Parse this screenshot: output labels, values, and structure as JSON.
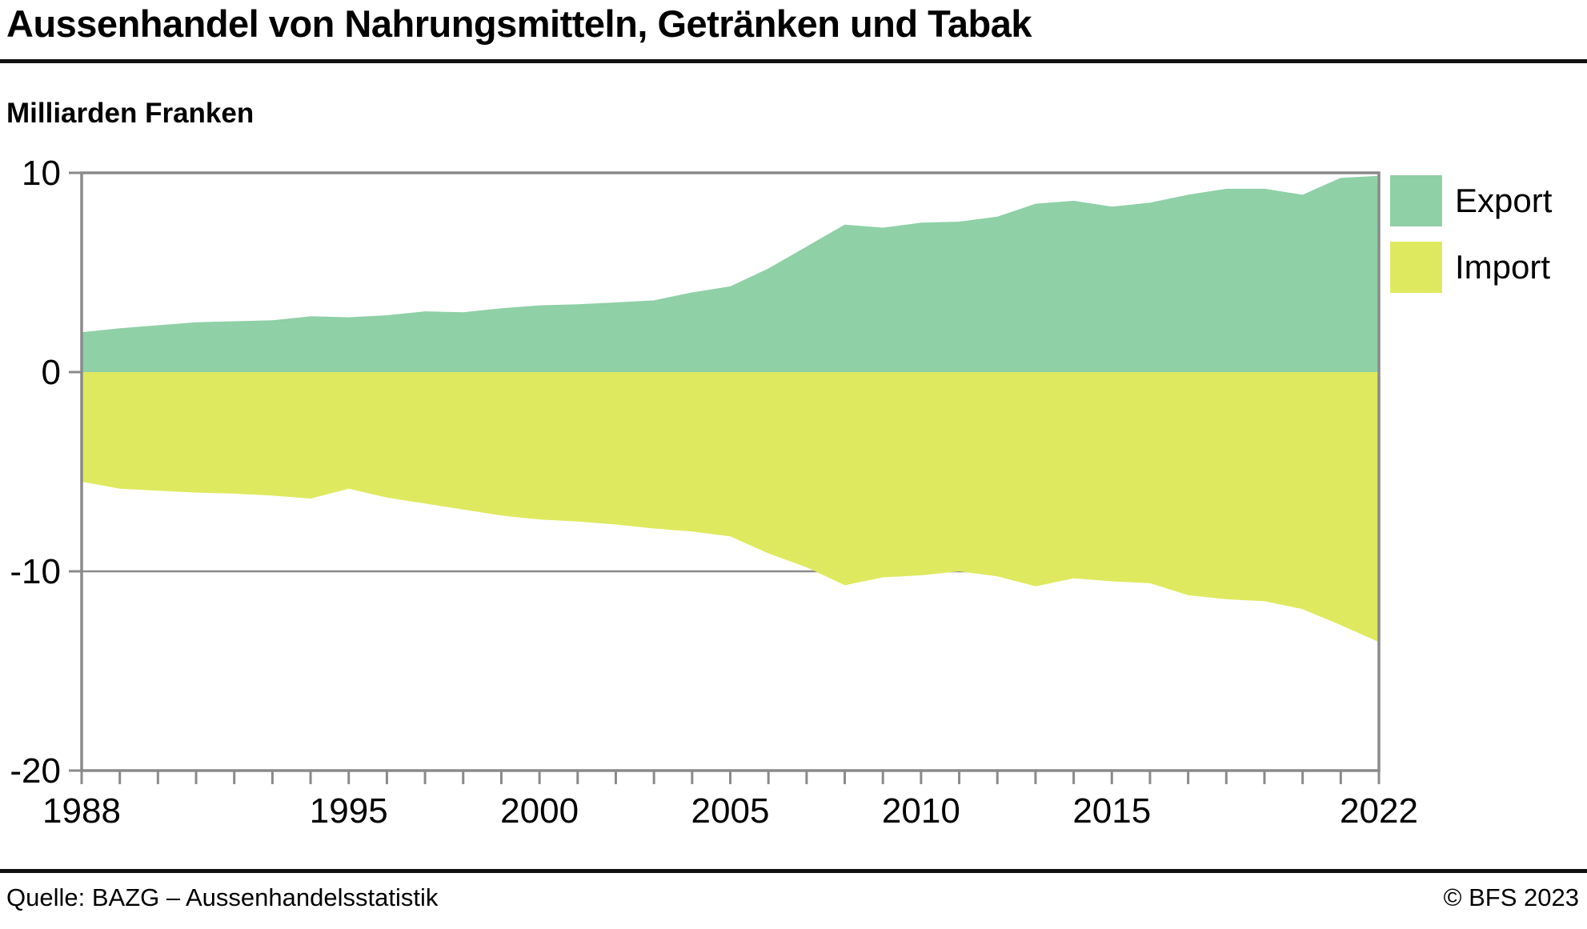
{
  "title": "Aussenhandel von Nahrungsmitteln, Getränken und Tabak",
  "subtitle": "Milliarden Franken",
  "legend": {
    "items": [
      {
        "label": "Export",
        "color": "#8fd0a7"
      },
      {
        "label": "Import",
        "color": "#dfe95f"
      }
    ]
  },
  "footer": {
    "source": "Quelle: BAZG – Aussenhandelsstatistik",
    "copyright": "© BFS 2023"
  },
  "chart_data": {
    "type": "area",
    "title": "Aussenhandel von Nahrungsmitteln, Getränken und Tabak",
    "ylabel": "Milliarden Franken",
    "xlabel": "",
    "ylim": [
      -20,
      10
    ],
    "yticks": [
      10,
      0,
      -10,
      -20
    ],
    "gridlines": [
      -10
    ],
    "grid": "horizontal-partial",
    "legend_position": "top-right",
    "axis_color": "#8a8a8a",
    "x": [
      1988,
      1989,
      1990,
      1991,
      1992,
      1993,
      1994,
      1995,
      1996,
      1997,
      1998,
      1999,
      2000,
      2001,
      2002,
      2003,
      2004,
      2005,
      2006,
      2007,
      2008,
      2009,
      2010,
      2011,
      2012,
      2013,
      2014,
      2015,
      2016,
      2017,
      2018,
      2019,
      2020,
      2021,
      2022
    ],
    "xticks_labeled": [
      1988,
      1995,
      2000,
      2005,
      2010,
      2015,
      2022
    ],
    "series": [
      {
        "name": "Export",
        "color": "#8fd0a7",
        "values": [
          2.0,
          2.2,
          2.35,
          2.5,
          2.55,
          2.6,
          2.8,
          2.75,
          2.85,
          3.05,
          3.0,
          3.2,
          3.35,
          3.4,
          3.5,
          3.6,
          4.0,
          4.3,
          5.2,
          6.3,
          7.4,
          7.25,
          7.5,
          7.55,
          7.8,
          8.45,
          8.6,
          8.3,
          8.5,
          8.9,
          9.2,
          9.2,
          8.9,
          9.75,
          9.85
        ]
      },
      {
        "name": "Import",
        "color": "#dfe95f",
        "values": [
          -5.5,
          -5.85,
          -5.95,
          -6.05,
          -6.1,
          -6.2,
          -6.35,
          -5.85,
          -6.3,
          -6.6,
          -6.9,
          -7.2,
          -7.4,
          -7.5,
          -7.65,
          -7.85,
          -8.0,
          -8.25,
          -9.1,
          -9.8,
          -10.7,
          -10.3,
          -10.2,
          -10.0,
          -10.25,
          -10.75,
          -10.35,
          -10.5,
          -10.6,
          -11.2,
          -11.4,
          -11.5,
          -11.9,
          -12.7,
          -13.55
        ]
      }
    ]
  }
}
